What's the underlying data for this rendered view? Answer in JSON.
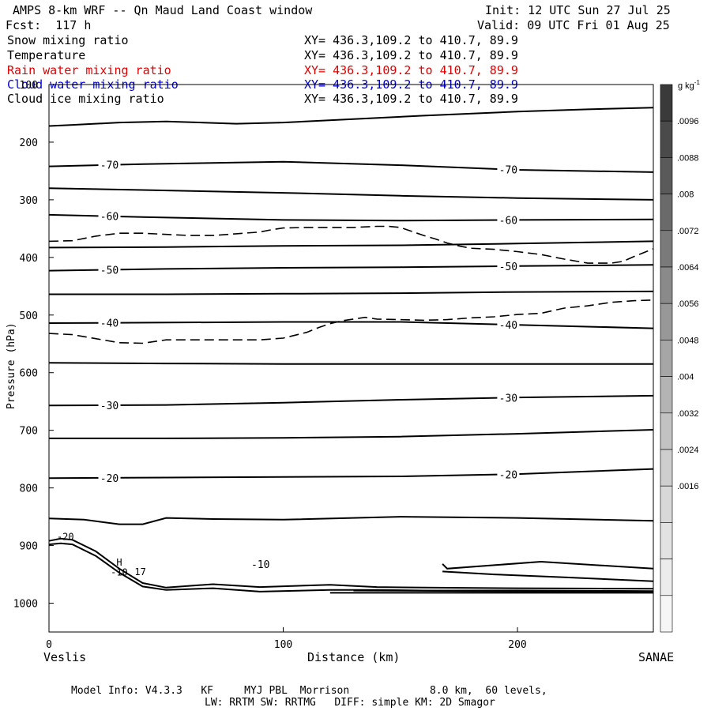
{
  "header": {
    "title": "AMPS 8-km WRF -- Qn Maud Land Coast window",
    "forecast": "Fcst:  117 h",
    "init": "Init: 12 UTC Sun 27 Jul 25",
    "valid": "Valid: 09 UTC Fri 01 Aug 25"
  },
  "legend": [
    {
      "name": "Snow mixing ratio",
      "xy": "XY= 436.3,109.2 to 410.7, 89.9",
      "color": "#000000"
    },
    {
      "name": "Temperature",
      "xy": "XY= 436.3,109.2 to 410.7, 89.9",
      "color": "#000000"
    },
    {
      "name": "Rain water mixing ratio",
      "xy": "XY= 436.3,109.2 to 410.7, 89.9",
      "color": "#e00000"
    },
    {
      "name": "Cloud water mixing ratio",
      "xy": "XY= 436.3,109.2 to 410.7, 89.9",
      "color": "#0000d0"
    },
    {
      "name": "Cloud ice mixing ratio",
      "xy": "XY= 436.3,109.2 to 410.7, 89.9",
      "color": "#000000"
    }
  ],
  "axes": {
    "ylabel": "Pressure (hPa)",
    "xlabel": "Distance (km)",
    "left_endpoint": "Veslis",
    "right_endpoint": "SANAE"
  },
  "colorbar": {
    "unit_base": "g kg",
    "unit_exp": "-1",
    "labels": [
      ".0096",
      ".0088",
      ".008",
      ".0072",
      ".0064",
      ".0056",
      ".0048",
      ".004",
      ".0032",
      ".0024",
      ".0016"
    ],
    "shade_levels": [
      "#3a3a3a",
      "#4a4a4a",
      "#5a5a5a",
      "#6a6a6a",
      "#7a7a7a",
      "#8a8a8a",
      "#989898",
      "#a6a6a6",
      "#b4b4b4",
      "#c2c2c2",
      "#cecece",
      "#d8d8d8",
      "#e2e2e2",
      "#ececec",
      "#f6f6f6"
    ]
  },
  "footer": {
    "line1": "Model Info: V4.3.3   KF     MYJ PBL  Morrison             8.0 km,  60 levels,",
    "line2": "LW: RRTM SW: RRTMG   DIFF: simple KM: 2D Smagor"
  },
  "chart_data": {
    "type": "line",
    "xlim": [
      0,
      258
    ],
    "ylim": [
      1050,
      100
    ],
    "y_reversed": true,
    "xticks": [
      0,
      100,
      200
    ],
    "yticks": [
      100,
      200,
      300,
      400,
      500,
      600,
      700,
      800,
      900,
      1000
    ],
    "isotherms": [
      {
        "x": [
          0,
          10,
          30,
          50,
          80,
          100,
          130,
          160,
          200,
          230,
          258
        ],
        "y": [
          172,
          170,
          166,
          164,
          168,
          166,
          160,
          154,
          147,
          143,
          140
        ]
      },
      {
        "label": "-70",
        "x": [
          0,
          40,
          100,
          150,
          200,
          258
        ],
        "y": [
          242,
          238,
          234,
          240,
          248,
          252
        ]
      },
      {
        "x": [
          0,
          40,
          100,
          150,
          200,
          258
        ],
        "y": [
          280,
          283,
          288,
          293,
          297,
          300
        ]
      },
      {
        "label": "-60",
        "x": [
          0,
          40,
          100,
          150,
          200,
          258
        ],
        "y": [
          326,
          330,
          335,
          336,
          335,
          334
        ]
      },
      {
        "x": [
          0,
          50,
          100,
          150,
          200,
          258
        ],
        "y": [
          383,
          382,
          380,
          379,
          376,
          372
        ]
      },
      {
        "label": "-50",
        "x": [
          0,
          50,
          100,
          150,
          200,
          258
        ],
        "y": [
          423,
          420,
          418,
          417,
          415,
          413
        ]
      },
      {
        "x": [
          0,
          50,
          100,
          150,
          200,
          258
        ],
        "y": [
          464,
          464,
          463,
          462,
          460,
          459
        ]
      },
      {
        "label": "-40",
        "x": [
          0,
          50,
          100,
          150,
          200,
          258
        ],
        "y": [
          514,
          513,
          512,
          512,
          517,
          523
        ]
      },
      {
        "x": [
          0,
          50,
          100,
          150,
          200,
          258
        ],
        "y": [
          583,
          584,
          585,
          585,
          585,
          585
        ]
      },
      {
        "label": "-30",
        "x": [
          0,
          50,
          100,
          150,
          200,
          258
        ],
        "y": [
          657,
          656,
          652,
          647,
          643,
          640
        ]
      },
      {
        "x": [
          0,
          50,
          100,
          150,
          200,
          258
        ],
        "y": [
          714,
          714,
          713,
          711,
          706,
          699
        ]
      },
      {
        "label": "-20",
        "x": [
          0,
          50,
          100,
          150,
          200,
          258
        ],
        "y": [
          783,
          782,
          781,
          780,
          776,
          767
        ]
      },
      {
        "x": [
          0,
          15,
          30,
          40,
          50,
          70,
          100,
          150,
          200,
          258
        ],
        "y": [
          853,
          855,
          863,
          863,
          852,
          854,
          855,
          850,
          852,
          857
        ]
      },
      {
        "label": "-10",
        "x": [
          168,
          170,
          190,
          210,
          258
        ],
        "y": [
          932,
          940,
          934,
          928,
          940
        ]
      },
      {
        "x": [
          168,
          190,
          220,
          258
        ],
        "y": [
          945,
          950,
          955,
          962
        ]
      }
    ],
    "terrain": [
      {
        "x": [
          0,
          5,
          10,
          20,
          30,
          40,
          50,
          70,
          90,
          120,
          140,
          160,
          200,
          258
        ],
        "y": [
          898,
          896,
          898,
          918,
          947,
          971,
          977,
          974,
          980,
          977,
          977,
          978,
          978,
          979
        ]
      },
      {
        "x": [
          0,
          5,
          10,
          20,
          30,
          40,
          50,
          70,
          90,
          120,
          140,
          160,
          200,
          258
        ],
        "y": [
          892,
          888,
          890,
          910,
          940,
          965,
          973,
          967,
          972,
          968,
          972,
          973,
          974,
          975
        ]
      },
      {
        "x": [
          120,
          160,
          200,
          258
        ],
        "y": [
          982,
          982,
          982,
          982
        ]
      },
      {
        "x": [
          130,
          180,
          258
        ],
        "y": [
          978,
          979,
          980
        ]
      }
    ],
    "dashed_contours": [
      {
        "x": [
          0,
          10,
          20,
          30,
          40,
          50,
          60,
          70,
          80,
          90,
          95,
          100,
          110,
          120,
          130,
          140,
          145,
          150,
          155,
          160,
          165,
          170,
          175,
          180,
          190,
          200,
          210,
          220,
          230,
          240,
          245,
          250,
          258
        ],
        "y": [
          372,
          371,
          363,
          358,
          358,
          360,
          362,
          362,
          359,
          356,
          352,
          349,
          348,
          348,
          348,
          346,
          346,
          348,
          355,
          362,
          368,
          375,
          380,
          384,
          386,
          390,
          395,
          403,
          410,
          410,
          407,
          398,
          385
        ]
      },
      {
        "x": [
          0,
          10,
          20,
          30,
          40,
          50,
          60,
          70,
          80,
          90,
          100,
          110,
          115,
          120,
          125,
          130,
          135,
          140,
          150,
          160,
          170,
          180,
          190,
          200,
          210,
          220,
          230,
          240,
          250,
          258
        ],
        "y": [
          532,
          534,
          541,
          548,
          549,
          543,
          543,
          543,
          543,
          543,
          540,
          530,
          522,
          515,
          510,
          507,
          504,
          507,
          508,
          509,
          508,
          505,
          503,
          499,
          497,
          488,
          484,
          478,
          475,
          474
        ]
      }
    ],
    "labels": [
      {
        "text": "-20",
        "x": 7,
        "y": 890
      },
      {
        "text": "H",
        "x": 30,
        "y": 935
      },
      {
        "text": "-10",
        "x": 30,
        "y": 952
      },
      {
        "text": "17",
        "x": 39,
        "y": 951
      }
    ]
  }
}
